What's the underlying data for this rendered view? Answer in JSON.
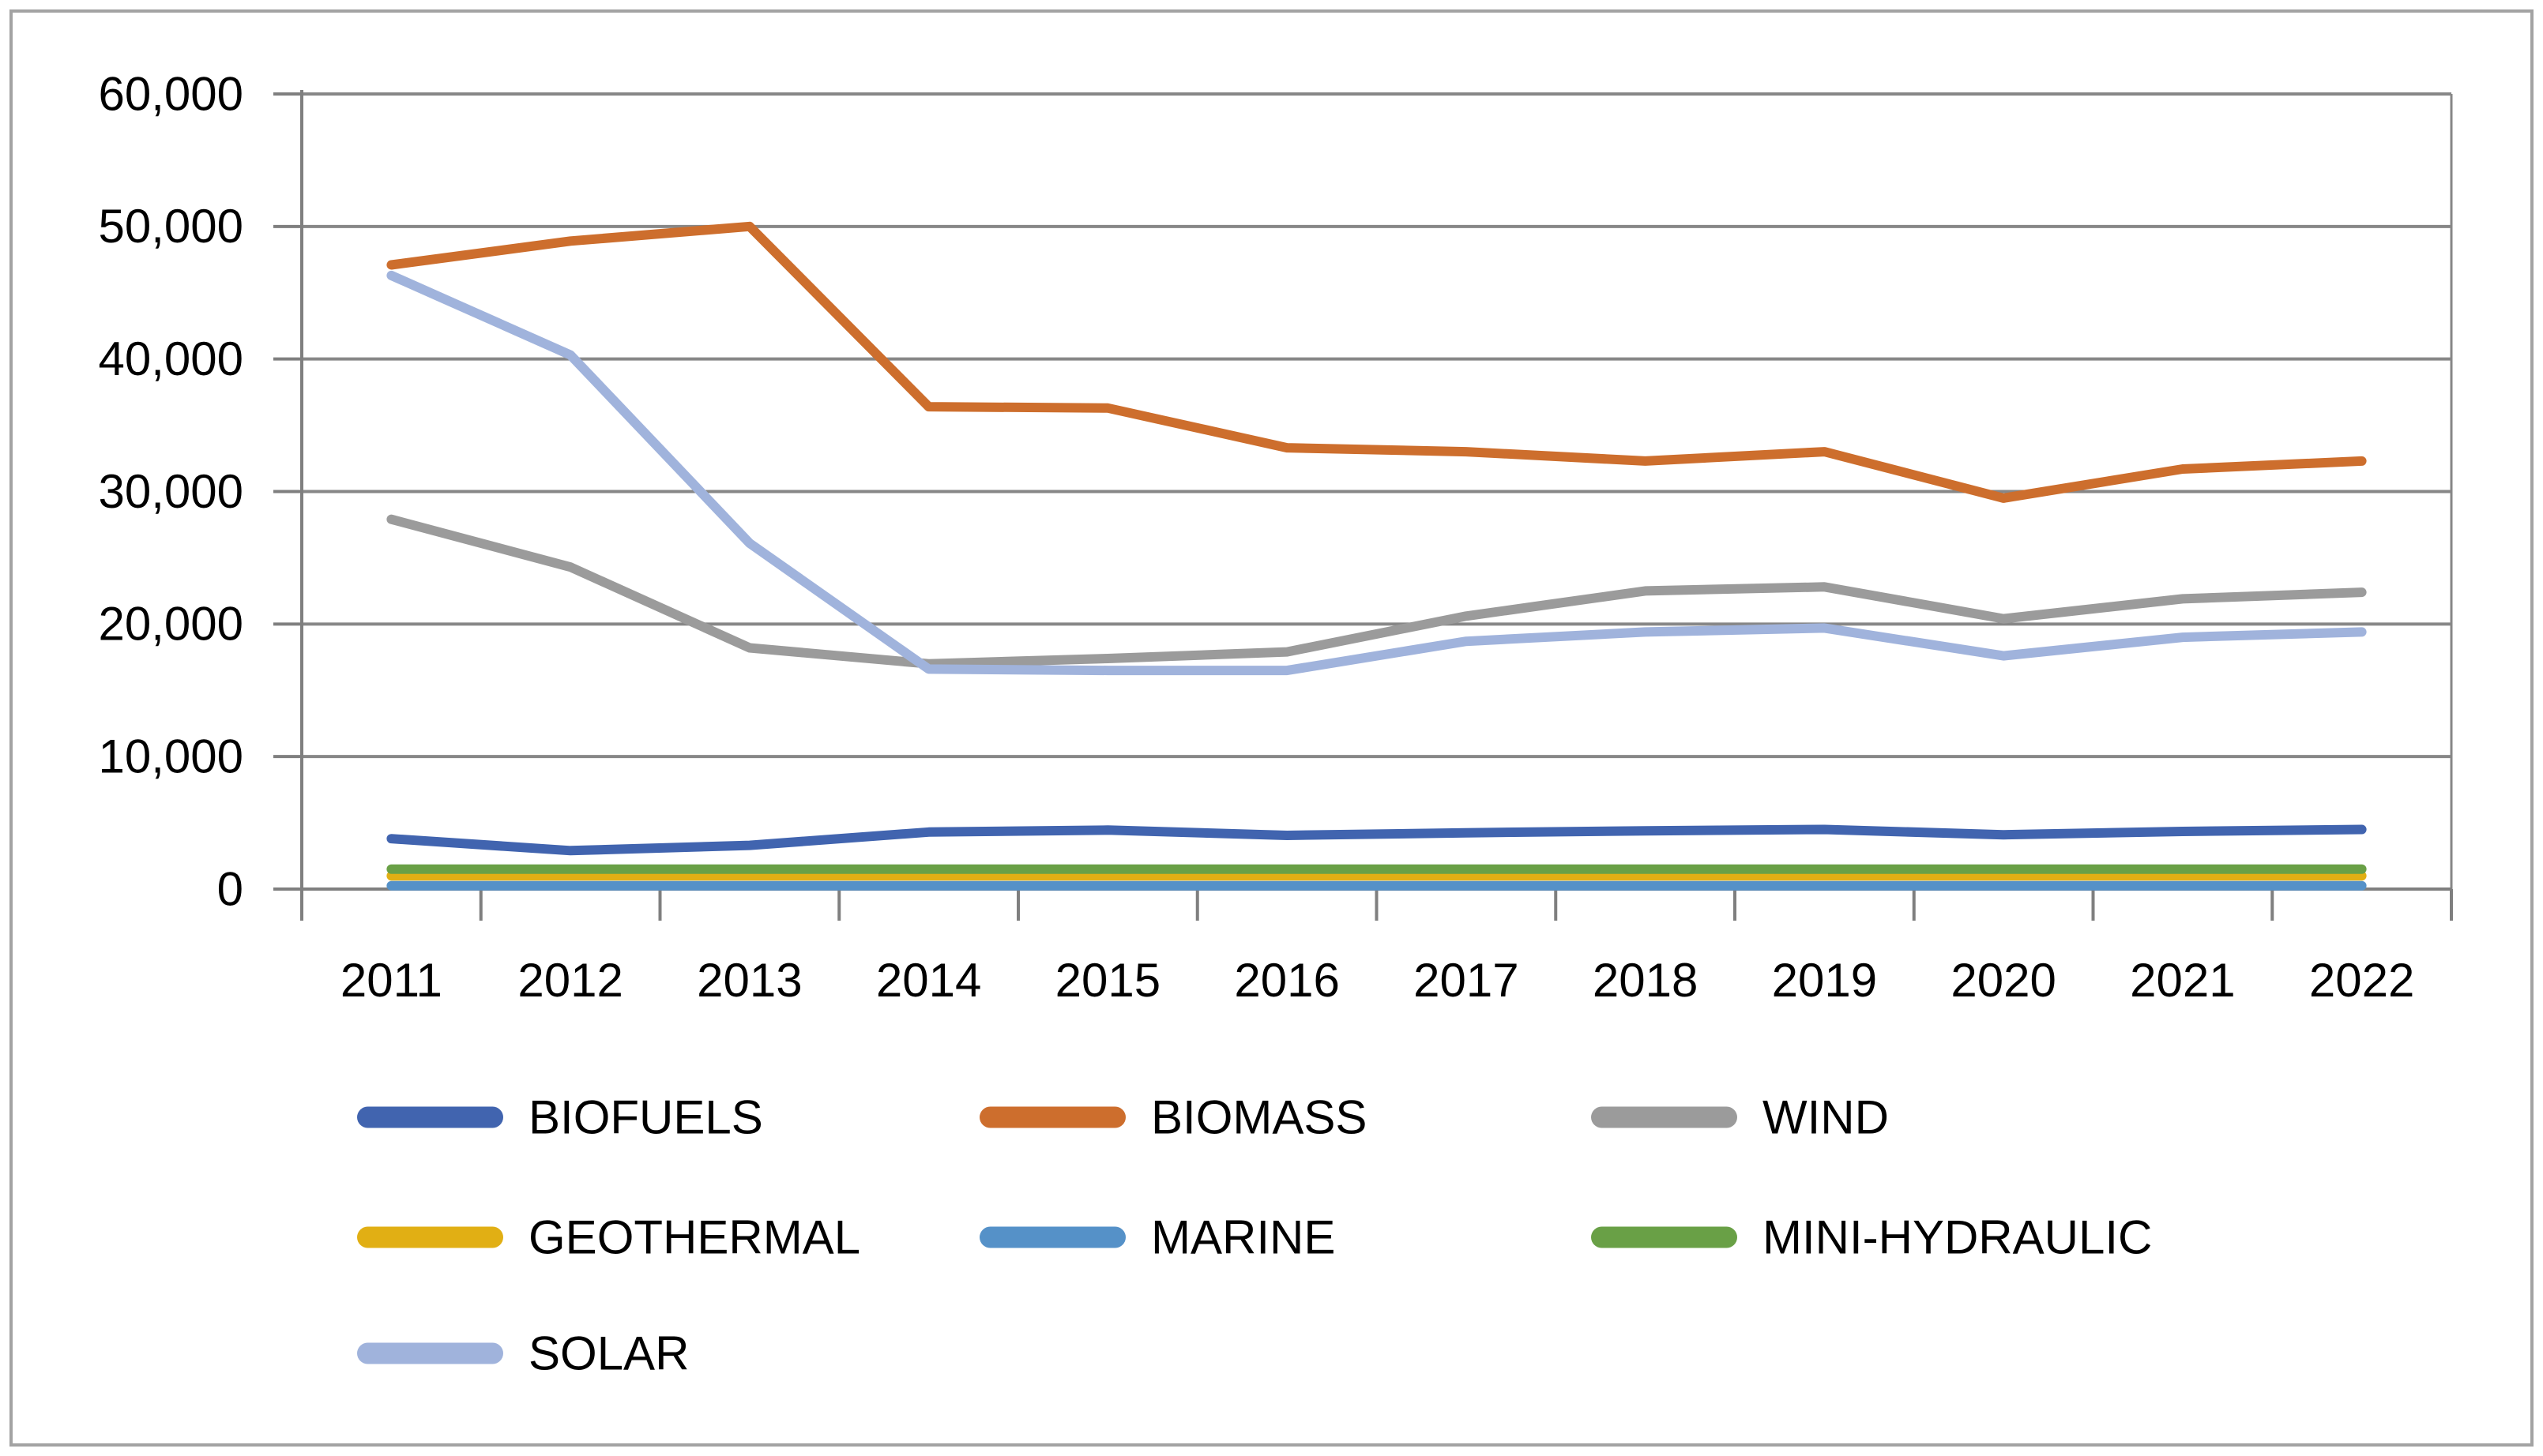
{
  "chart_data": {
    "type": "line",
    "title": "",
    "xlabel": "",
    "ylabel": "",
    "categories": [
      "2011",
      "2012",
      "2013",
      "2014",
      "2015",
      "2016",
      "2017",
      "2018",
      "2019",
      "2020",
      "2021",
      "2022"
    ],
    "series": [
      {
        "name": "BIOFUELS",
        "color": "#4164AF",
        "values": [
          3800,
          2900,
          3300,
          4300,
          4450,
          4050,
          4250,
          4400,
          4500,
          4100,
          4350,
          4500
        ]
      },
      {
        "name": "BIOMASS",
        "color": "#CD6E2D",
        "values": [
          47100,
          48900,
          50000,
          36400,
          36300,
          33300,
          33000,
          32300,
          33000,
          29500,
          31700,
          32300
        ]
      },
      {
        "name": "WIND",
        "color": "#9B9B9B",
        "values": [
          27900,
          24300,
          18200,
          17000,
          17400,
          17900,
          20600,
          22500,
          22800,
          20400,
          21900,
          22400
        ]
      },
      {
        "name": "GEOTHERMAL",
        "color": "#E1AF14",
        "values": [
          1000,
          1000,
          1000,
          1000,
          1000,
          1000,
          1000,
          1000,
          1000,
          1000,
          1000,
          1000
        ]
      },
      {
        "name": "MARINE",
        "color": "#5591C8",
        "values": [
          250,
          250,
          250,
          250,
          250,
          250,
          250,
          250,
          250,
          250,
          250,
          250
        ]
      },
      {
        "name": "MINI-HYDRAULIC",
        "color": "#69A046",
        "values": [
          1500,
          1500,
          1500,
          1500,
          1500,
          1500,
          1500,
          1500,
          1500,
          1500,
          1500,
          1500
        ]
      },
      {
        "name": "SOLAR",
        "color": "#A0B3DC",
        "values": [
          46300,
          40300,
          26100,
          16600,
          16500,
          16500,
          18700,
          19400,
          19700,
          17600,
          19000,
          19400
        ]
      }
    ],
    "ylim": [
      0,
      60000
    ],
    "y_tick_step": 10000,
    "y_tick_labels": [
      "0",
      "10,000",
      "20,000",
      "30,000",
      "40,000",
      "50,000",
      "60,000"
    ],
    "grid": true,
    "legend_position": "bottom"
  },
  "colors": {
    "background": "#FFFFFF",
    "figure_border": "#A3A3A3",
    "gridline": "#878787",
    "axis": "#7F7F7F",
    "text": "#000000"
  }
}
